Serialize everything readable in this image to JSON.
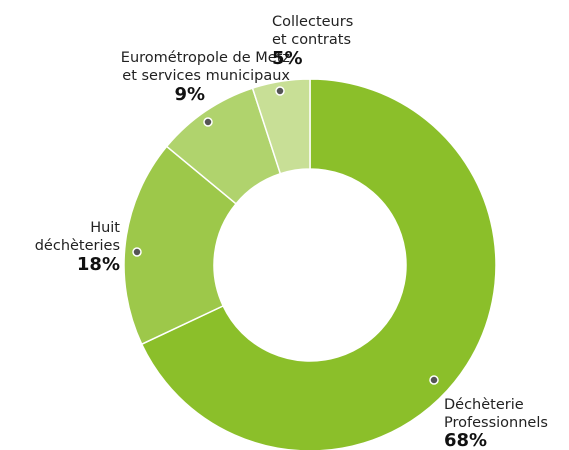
{
  "chart_data": {
    "type": "donut",
    "categories": [
      [
        "Déchèterie",
        "Professionnels"
      ],
      [
        "Huit",
        "déchèteries"
      ],
      [
        "Eurométropole de Metz",
        "et services municipaux"
      ],
      [
        "Collecteurs",
        "et contrats"
      ]
    ],
    "values": [
      68,
      18,
      9,
      5
    ],
    "value_labels": [
      "68%",
      "18%",
      "9%",
      "5%"
    ],
    "colors": [
      "#8bbf2a",
      "#9dc84a",
      "#b0d36d",
      "#c8df96"
    ]
  }
}
